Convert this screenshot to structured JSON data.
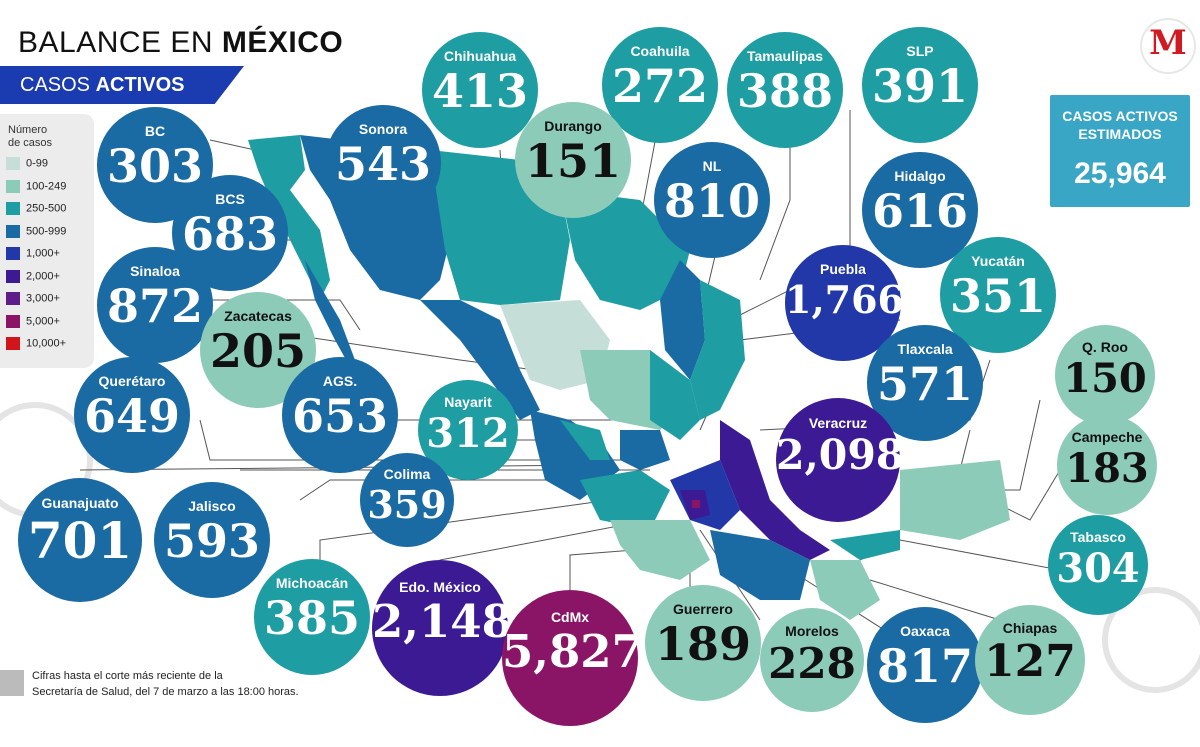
{
  "header": {
    "title_regular": "BALANCE EN ",
    "title_bold": "MÉXICO",
    "subtitle_regular": "CASOS ",
    "subtitle_bold": "ACTIVOS"
  },
  "logo": {
    "letter": "M",
    "color": "#d11b22"
  },
  "estimate": {
    "title_line1": "CASOS ACTIVOS",
    "title_line2": "ESTIMADOS",
    "value": "25,964"
  },
  "legend": {
    "title_line1": "Número",
    "title_line2": "de casos",
    "items": [
      {
        "label": "0-99",
        "color": "#c5dfd8"
      },
      {
        "label": "100-249",
        "color": "#8dcbb9"
      },
      {
        "label": "250-500",
        "color": "#1e9da3"
      },
      {
        "label": "500-999",
        "color": "#1a6aa3"
      },
      {
        "label": "1,000+",
        "color": "#2238a9"
      },
      {
        "label": "2,000+",
        "color": "#3b1a94"
      },
      {
        "label": "3,000+",
        "color": "#5e1d88"
      },
      {
        "label": "5,000+",
        "color": "#8a1466"
      },
      {
        "label": "10,000+",
        "color": "#d0161b"
      }
    ]
  },
  "states": [
    {
      "name": "BC",
      "value": "303"
    },
    {
      "name": "Sonora",
      "value": "543"
    },
    {
      "name": "Chihuahua",
      "value": "413"
    },
    {
      "name": "Coahuila",
      "value": "272"
    },
    {
      "name": "Tamaulipas",
      "value": "388"
    },
    {
      "name": "SLP",
      "value": "391"
    },
    {
      "name": "Durango",
      "value": "151"
    },
    {
      "name": "BCS",
      "value": "683"
    },
    {
      "name": "NL",
      "value": "810"
    },
    {
      "name": "Hidalgo",
      "value": "616"
    },
    {
      "name": "Sinaloa",
      "value": "872"
    },
    {
      "name": "Puebla",
      "value": "1,766"
    },
    {
      "name": "Yucatán",
      "value": "351"
    },
    {
      "name": "Zacatecas",
      "value": "205"
    },
    {
      "name": "Q. Roo",
      "value": "150"
    },
    {
      "name": "Tlaxcala",
      "value": "571"
    },
    {
      "name": "Querétaro",
      "value": "649"
    },
    {
      "name": "AGS.",
      "value": "653"
    },
    {
      "name": "Nayarit",
      "value": "312"
    },
    {
      "name": "Veracruz",
      "value": "2,098"
    },
    {
      "name": "Campeche",
      "value": "183"
    },
    {
      "name": "Colima",
      "value": "359"
    },
    {
      "name": "Guanajuato",
      "value": "701"
    },
    {
      "name": "Jalisco",
      "value": "593"
    },
    {
      "name": "Tabasco",
      "value": "304"
    },
    {
      "name": "Michoacán",
      "value": "385"
    },
    {
      "name": "Edo. México",
      "value": "2,148"
    },
    {
      "name": "CdMx",
      "value": "5,827"
    },
    {
      "name": "Guerrero",
      "value": "189"
    },
    {
      "name": "Morelos",
      "value": "228"
    },
    {
      "name": "Oaxaca",
      "value": "817"
    },
    {
      "name": "Chiapas",
      "value": "127"
    }
  ],
  "footnote": {
    "line1": "Cifras hasta el corte más reciente de la",
    "line2": "Secretaría de Salud, del 7 de marzo a las 18:00 horas."
  }
}
